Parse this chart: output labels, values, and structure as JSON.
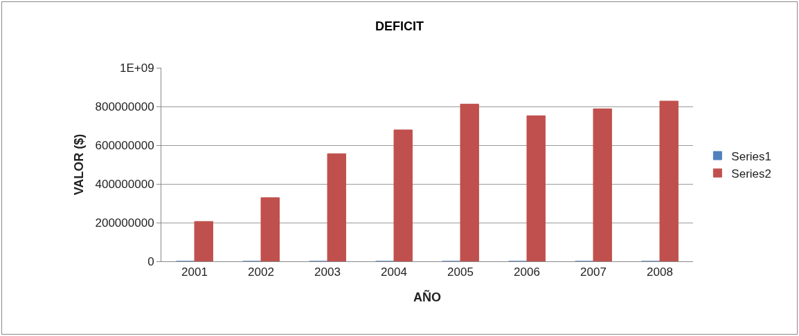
{
  "chart_data": {
    "type": "bar",
    "title": "DEFICIT",
    "xlabel": "AÑO",
    "ylabel": "VALOR ($)",
    "categories": [
      "2001",
      "2002",
      "2003",
      "2004",
      "2005",
      "2006",
      "2007",
      "2008"
    ],
    "series": [
      {
        "name": "Series1",
        "color": "#4f81bd",
        "values": [
          0,
          0,
          0,
          0,
          0,
          0,
          0,
          0
        ]
      },
      {
        "name": "Series2",
        "color": "#c0504d",
        "values": [
          206000000,
          329000000,
          556000000,
          679000000,
          812000000,
          752000000,
          788000000,
          828000000
        ]
      }
    ],
    "ylim": [
      0,
      1000000000
    ],
    "yticks": [
      0,
      200000000,
      400000000,
      600000000,
      800000000,
      {
        "value": 1000000000,
        "label": "1E+09"
      }
    ],
    "grid": "y",
    "legend": "right"
  }
}
